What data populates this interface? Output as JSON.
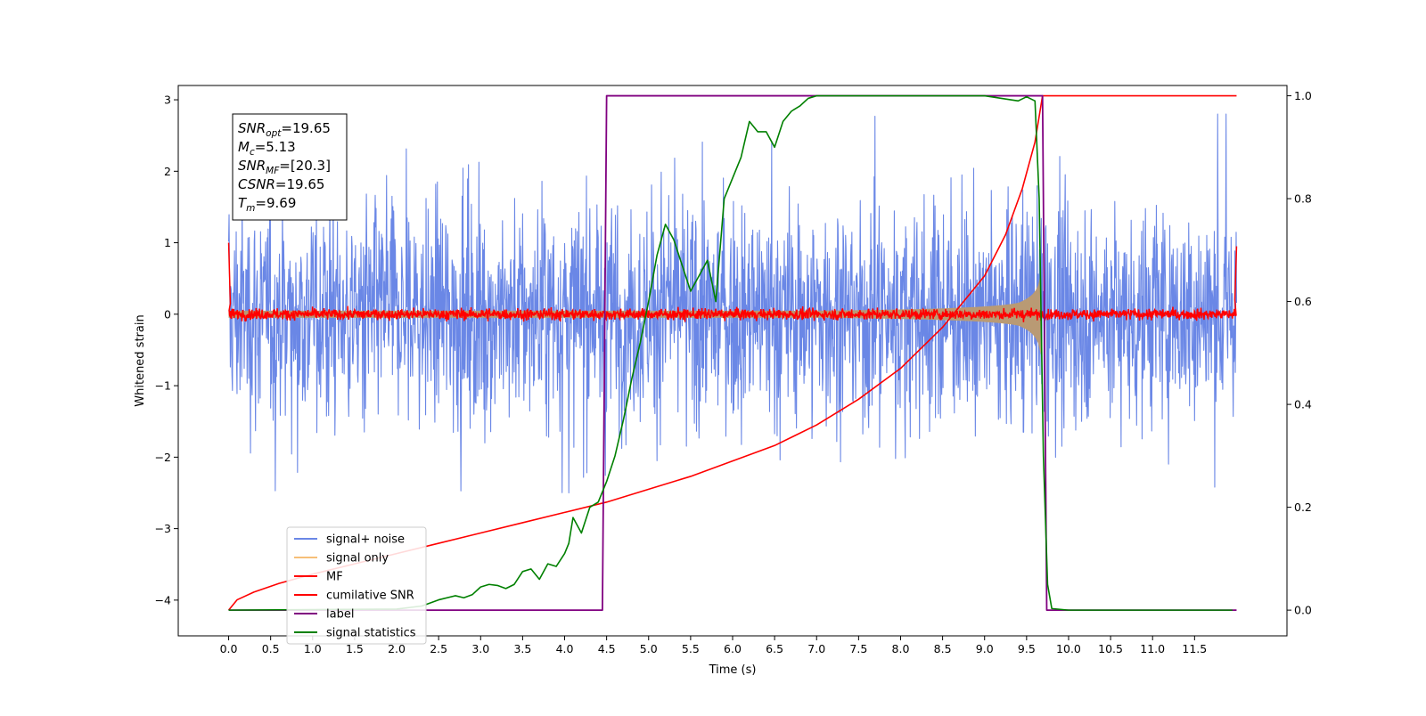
{
  "chart_data": {
    "type": "line",
    "xlabel": "Time (s)",
    "ylabel": "Whitened strain",
    "xlim": [
      -0.6,
      12.6
    ],
    "ylim_left": [
      -4.5,
      3.2
    ],
    "ylim_right": [
      -0.05,
      1.02
    ],
    "x_ticks": [
      "0.0",
      "0.5",
      "1.0",
      "1.5",
      "2.0",
      "2.5",
      "3.0",
      "3.5",
      "4.0",
      "4.5",
      "5.0",
      "5.5",
      "6.0",
      "6.5",
      "7.0",
      "7.5",
      "8.0",
      "8.5",
      "9.0",
      "9.5",
      "10.0",
      "10.5",
      "11.0",
      "11.5"
    ],
    "y_ticks_left": [
      "3",
      "2",
      "1",
      "0",
      "−1",
      "−2",
      "−3",
      "−4"
    ],
    "y_ticks_right": [
      "1.0",
      "0.8",
      "0.6",
      "0.4",
      "0.2",
      "0.0"
    ],
    "grid": false,
    "legend_position": "lower-left",
    "annotation": [
      {
        "main": "SNR",
        "sub": "opt",
        "value": "=19.65"
      },
      {
        "main": "M",
        "sub": "c",
        "value": "=5.13"
      },
      {
        "main": "SNR",
        "sub": "MF",
        "value": "=[20.3]"
      },
      {
        "main": "CSNR",
        "sub": "",
        "value": "=19.65"
      },
      {
        "main": "T",
        "sub": "m",
        "value": "=9.69"
      }
    ],
    "series": [
      {
        "name": "signal+ noise",
        "color": "#6a87e6",
        "axis": "left",
        "description_values": {
          "x_range": [
            0.0,
            12.0
          ],
          "amplitude_envelope": [
            -2.5,
            2.8
          ]
        }
      },
      {
        "name": "signal only",
        "color": "#f5b869",
        "axis": "left",
        "description_values": {
          "x_range": [
            0.0,
            9.69
          ],
          "merger_time": 9.69
        }
      },
      {
        "name": "MF",
        "color": "#ff0000",
        "axis": "left",
        "description_values": {
          "x_range": [
            0.0,
            12.0
          ],
          "baseline": 0.0
        }
      },
      {
        "name": "cumilative SNR",
        "color": "#ff0000",
        "axis": "right",
        "x": [
          0.0,
          0.05,
          0.1,
          0.3,
          0.6,
          1.0,
          1.5,
          2.0,
          2.5,
          3.0,
          3.5,
          4.0,
          4.5,
          5.0,
          5.5,
          6.0,
          6.5,
          7.0,
          7.5,
          8.0,
          8.5,
          9.0,
          9.25,
          9.45,
          9.6,
          9.69,
          12.0
        ],
        "y": [
          0.0,
          0.01,
          0.02,
          0.035,
          0.052,
          0.07,
          0.09,
          0.11,
          0.13,
          0.15,
          0.17,
          0.19,
          0.21,
          0.235,
          0.26,
          0.29,
          0.32,
          0.36,
          0.41,
          0.47,
          0.55,
          0.65,
          0.73,
          0.82,
          0.91,
          1.0,
          1.0
        ]
      },
      {
        "name": "label",
        "color": "#800080",
        "axis": "right",
        "x": [
          0.0,
          4.45,
          4.5,
          9.69,
          9.74,
          12.0
        ],
        "y": [
          0.0,
          0.0,
          1.0,
          1.0,
          0.0,
          0.0
        ]
      },
      {
        "name": "signal statistics",
        "color": "#008000",
        "axis": "right",
        "x": [
          0.0,
          2.0,
          2.3,
          2.5,
          2.7,
          2.8,
          2.9,
          3.0,
          3.1,
          3.2,
          3.3,
          3.4,
          3.5,
          3.6,
          3.7,
          3.8,
          3.9,
          4.0,
          4.05,
          4.1,
          4.2,
          4.3,
          4.4,
          4.5,
          4.6,
          4.7,
          4.8,
          4.9,
          5.0,
          5.1,
          5.2,
          5.3,
          5.4,
          5.5,
          5.6,
          5.7,
          5.8,
          5.9,
          6.0,
          6.1,
          6.2,
          6.3,
          6.4,
          6.5,
          6.6,
          6.7,
          6.8,
          6.9,
          7.0,
          7.5,
          8.0,
          8.5,
          9.0,
          9.2,
          9.4,
          9.5,
          9.6,
          9.65,
          9.7,
          9.75,
          9.8,
          10.0,
          11.0,
          11.95
        ],
        "y": [
          0.0,
          0.002,
          0.008,
          0.02,
          0.028,
          0.024,
          0.03,
          0.045,
          0.05,
          0.048,
          0.042,
          0.05,
          0.075,
          0.08,
          0.06,
          0.09,
          0.085,
          0.11,
          0.13,
          0.18,
          0.15,
          0.2,
          0.21,
          0.25,
          0.3,
          0.37,
          0.45,
          0.52,
          0.6,
          0.69,
          0.75,
          0.72,
          0.67,
          0.62,
          0.65,
          0.68,
          0.6,
          0.8,
          0.84,
          0.88,
          0.95,
          0.93,
          0.93,
          0.9,
          0.95,
          0.97,
          0.98,
          0.995,
          1.0,
          1.0,
          1.0,
          1.0,
          1.0,
          0.995,
          0.99,
          0.998,
          0.99,
          0.8,
          0.3,
          0.05,
          0.003,
          0.0,
          0.0,
          0.0
        ]
      }
    ]
  }
}
